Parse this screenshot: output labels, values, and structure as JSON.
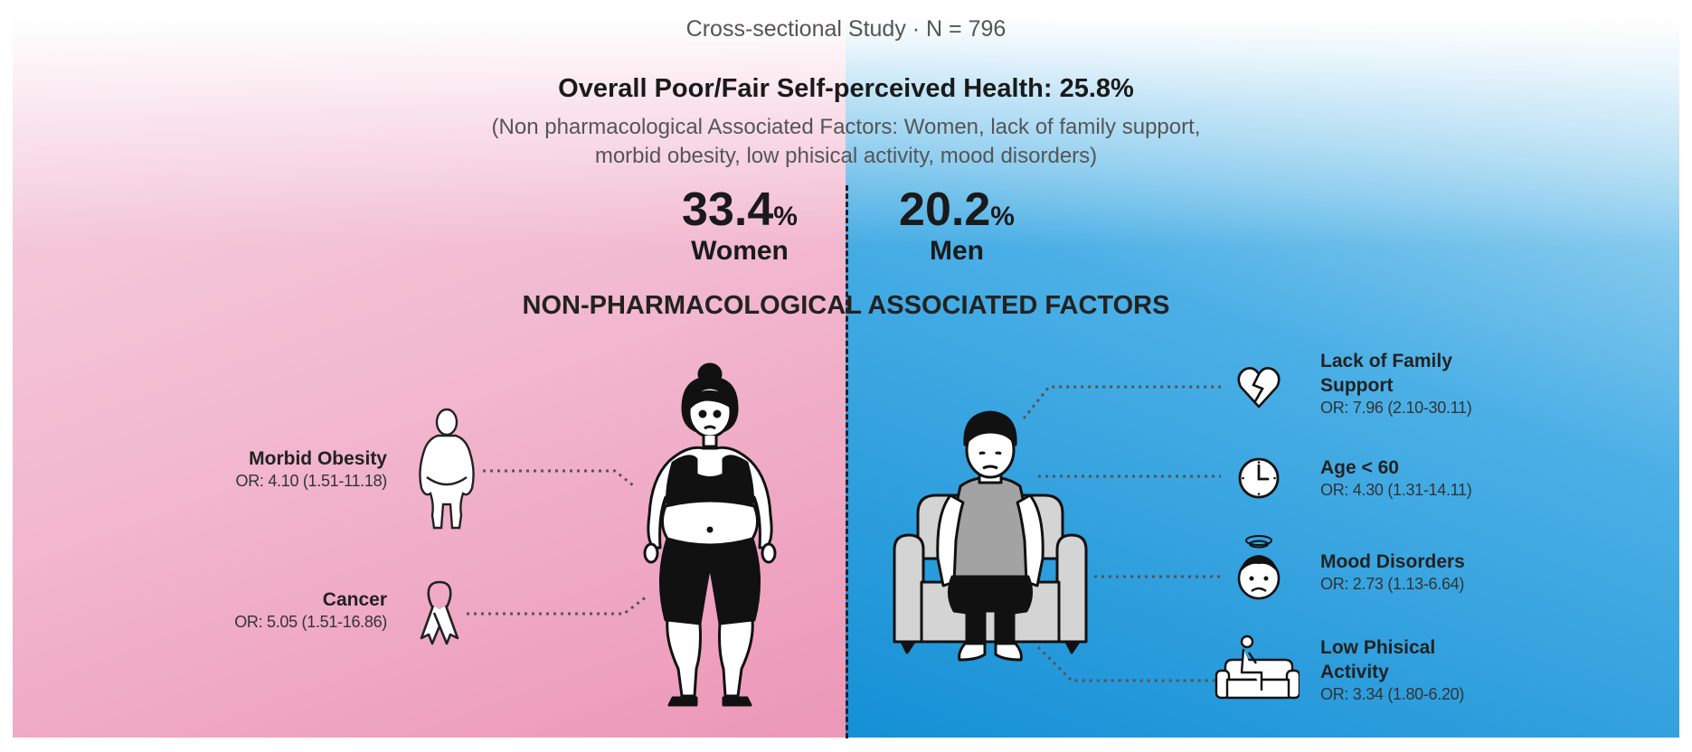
{
  "study": "Cross-sectional Study · N = 796",
  "headline": "Overall Poor/Fair Self-perceived Health: 25.8%",
  "subtitle_line1": "(Non pharmacological Associated Factors: Women, lack of family support,",
  "subtitle_line2": "morbid obesity, low phisical activity, mood disorders)",
  "women": {
    "value": "33.4",
    "unit": "%",
    "label": "Women"
  },
  "men": {
    "value": "20.2",
    "unit": "%",
    "label": "Men"
  },
  "section_title": "NON-PHARMACOLOGICAL ASSOCIATED FACTORS",
  "left_factors": [
    {
      "name": "Morbid Obesity",
      "or": "OR: 4.10 (1.51-11.18)",
      "icon": "obese-body-icon"
    },
    {
      "name": "Cancer",
      "or": "OR: 5.05 (1.51-16.86)",
      "icon": "cancer-ribbon-icon"
    }
  ],
  "right_factors": [
    {
      "name_line1": "Lack of Family",
      "name_line2": "Support",
      "or": "OR: 7.96 (2.10-30.11)",
      "icon": "broken-heart-icon"
    },
    {
      "name_line1": "Age < 60",
      "name_line2": "",
      "or": "OR: 4.30 (1.31-14.11)",
      "icon": "clock-icon"
    },
    {
      "name_line1": "Mood Disorders",
      "name_line2": "",
      "or": "OR: 2.73 (1.13-6.64)",
      "icon": "dizzy-sad-face-icon"
    },
    {
      "name_line1": "Low Phisical",
      "name_line2": "Activity",
      "or": "OR: 3.34 (1.80-6.20)",
      "icon": "person-on-sofa-icon"
    }
  ],
  "colors": {
    "women_pink": "#f2b8cf",
    "men_blue": "#1590d6",
    "text": "#1a1a1a"
  }
}
